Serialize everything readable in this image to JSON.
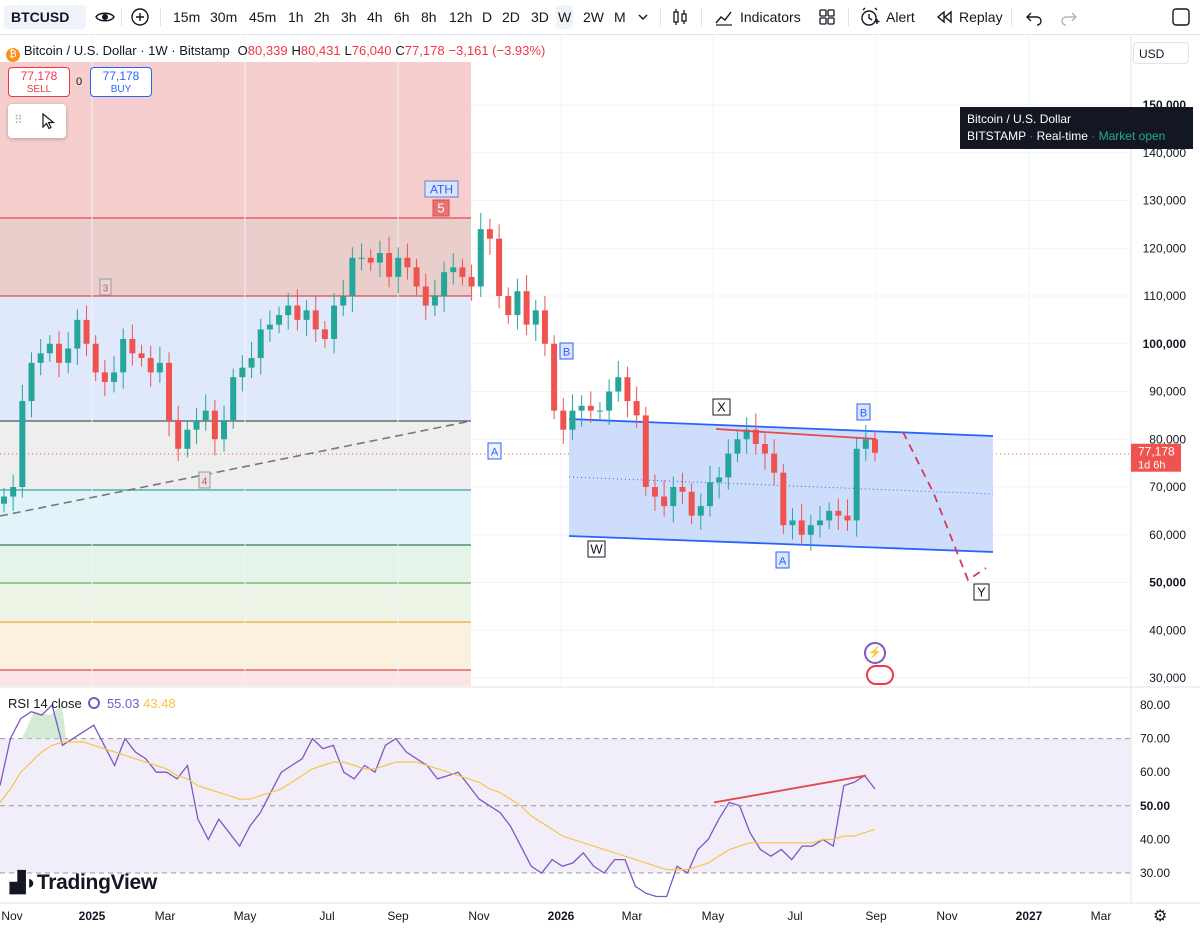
{
  "toolbar": {
    "symbol": "BTCUSD",
    "timeframes": [
      "15m",
      "30m",
      "45m",
      "1h",
      "2h",
      "3h",
      "4h",
      "6h",
      "8h",
      "12h",
      "D",
      "2D",
      "3D",
      "W",
      "2W",
      "M"
    ],
    "active_timeframe": "W",
    "indicators_label": "Indicators",
    "alert_label": "Alert",
    "replay_label": "Replay"
  },
  "legend": {
    "title": "Bitcoin / U.S. Dollar · 1W · Bitstamp",
    "open_label": "O",
    "open": "80,339",
    "high_label": "H",
    "high": "80,431",
    "low_label": "L",
    "low": "76,040",
    "close_label": "C",
    "close": "77,178",
    "change": "−3,161 (−3.93%)"
  },
  "trade": {
    "sell_price": "77,178",
    "sell_label": "SELL",
    "spread": "0",
    "buy_price": "77,178",
    "buy_label": "BUY"
  },
  "currency": "USD",
  "tooltip": {
    "name": "Bitcoin / U.S. Dollar",
    "exchange": "BITSTAMP",
    "feed": "Real-time",
    "status": "Market open"
  },
  "price_axis": {
    "labels": [
      "150,000",
      "140,000",
      "130,000",
      "120,000",
      "110,000",
      "100,000",
      "90,000",
      "80,000",
      "70,000",
      "60,000",
      "50,000",
      "40,000",
      "30,000"
    ],
    "current_price": "77,178",
    "countdown": "1d 6h"
  },
  "annotations": {
    "ath": "ATH",
    "wave5": "5",
    "wave3": "3",
    "wave4": "4",
    "a1": "A",
    "b1": "B",
    "w": "W",
    "x": "X",
    "a2": "A",
    "b2": "B",
    "y": "Y"
  },
  "rsi": {
    "label": "RSI 14 close",
    "value": "55.03",
    "ma_value": "43.48",
    "levels": [
      "80.00",
      "70.00",
      "60.00",
      "50.00",
      "40.00",
      "30.00"
    ]
  },
  "time_axis": [
    "Nov",
    "2025",
    "Mar",
    "May",
    "Jul",
    "Sep",
    "Nov",
    "2026",
    "Mar",
    "May",
    "Jul",
    "Sep",
    "Nov",
    "2027",
    "Mar"
  ],
  "brand": "TradingView",
  "colors": {
    "up": "#26a69a",
    "down": "#ef5350",
    "channel": "#2962ff",
    "rsi": "#7e57c2",
    "rsi_ma": "#f7c548"
  }
}
